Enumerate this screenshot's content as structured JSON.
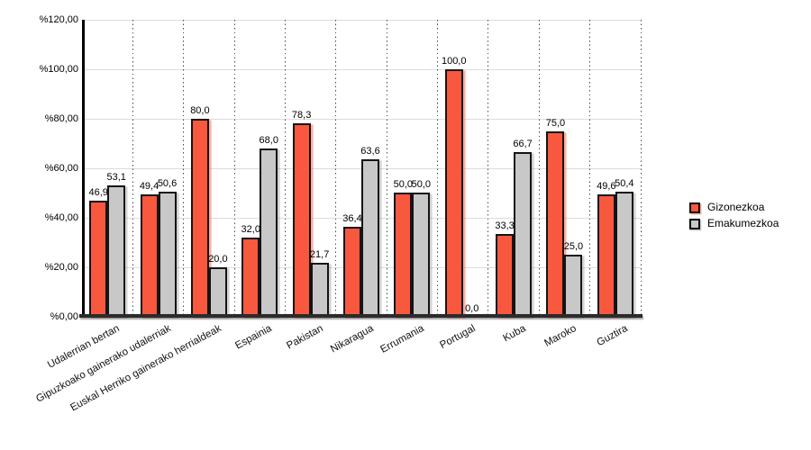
{
  "chart_data": {
    "type": "bar",
    "title": "",
    "xlabel": "",
    "ylabel": "",
    "ylim": [
      0,
      120
    ],
    "ytick_step": 20,
    "yticks": [
      "%0,00",
      "%20,00",
      "%40,00",
      "%60,00",
      "%80,00",
      "%100,00",
      "%120,00"
    ],
    "grid": "horizontal solid lines every 20%, vertical dotted separators between categories",
    "legend_position": "right",
    "categories": [
      "Udalerrian bertan",
      "Gipuzkoako gainerako udalerriak",
      "Euskal Herriko gainerako herrialdeak",
      "Espainia",
      "Pakistan",
      "Nikaragua",
      "Errumania",
      "Portugal",
      "Kuba",
      "Maroko",
      "Guztira"
    ],
    "series": [
      {
        "name": "Gizonezkoa",
        "color": "#F8583E",
        "values": [
          46.9,
          49.4,
          80.0,
          32.0,
          78.3,
          36.4,
          50.0,
          100.0,
          33.3,
          75.0,
          49.6
        ],
        "labels": [
          "46,9",
          "49,4",
          "80,0",
          "32,0",
          "78,3",
          "36,4",
          "50,0",
          "100,0",
          "33,3",
          "75,0",
          "49,6"
        ]
      },
      {
        "name": "Emakumezkoa",
        "color": "#C8C8C8",
        "values": [
          53.1,
          50.6,
          20.0,
          68.0,
          21.7,
          63.6,
          50.0,
          0.0,
          66.7,
          25.0,
          50.4
        ],
        "labels": [
          "53,1",
          "50,6",
          "20,0",
          "68,0",
          "21,7",
          "63,6",
          "50,0",
          "0,0",
          "66,7",
          "25,0",
          "50,4"
        ]
      }
    ]
  }
}
